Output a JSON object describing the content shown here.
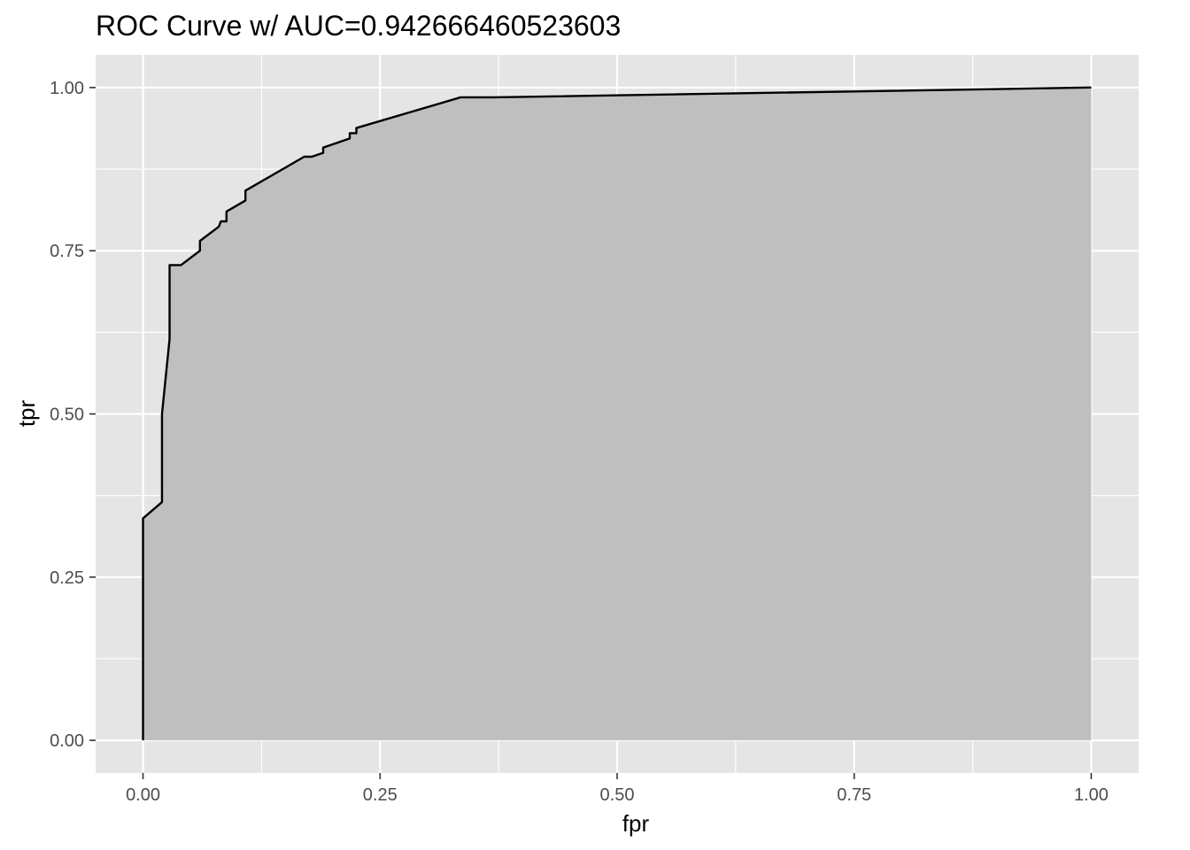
{
  "chart_data": {
    "type": "area",
    "title": "ROC Curve w/ AUC=0.942666460523603",
    "xlabel": "fpr",
    "ylabel": "tpr",
    "xlim": [
      -0.05,
      1.05
    ],
    "ylim": [
      -0.05,
      1.05
    ],
    "x_ticks": [
      0,
      0.25,
      0.5,
      0.75,
      1
    ],
    "x_tick_labels": [
      "0.00",
      "0.25",
      "0.50",
      "0.75",
      "1.00"
    ],
    "y_ticks": [
      0,
      0.25,
      0.5,
      0.75,
      1
    ],
    "y_tick_labels": [
      "0.00",
      "0.25",
      "0.50",
      "0.75",
      "1.00"
    ],
    "grid": true,
    "colors": {
      "panel_background": "#e5e5e5",
      "grid_line": "#ffffff",
      "area_fill": "#bfbfbf",
      "curve_line": "#000000"
    },
    "series": [
      {
        "fpr": [
          0,
          0,
          0.02,
          0.02,
          0.028,
          0.028,
          0.04,
          0.06,
          0.06,
          0.08,
          0.082,
          0.088,
          0.088,
          0.108,
          0.108,
          0.17,
          0.178,
          0.19,
          0.19,
          0.218,
          0.218,
          0.225,
          0.225,
          0.335,
          0.37,
          1
        ],
        "tpr": [
          0,
          0.34,
          0.365,
          0.5,
          0.615,
          0.728,
          0.728,
          0.75,
          0.765,
          0.787,
          0.795,
          0.795,
          0.81,
          0.827,
          0.842,
          0.894,
          0.894,
          0.9,
          0.908,
          0.922,
          0.93,
          0.93,
          0.938,
          0.985,
          0.985,
          1
        ]
      }
    ]
  }
}
